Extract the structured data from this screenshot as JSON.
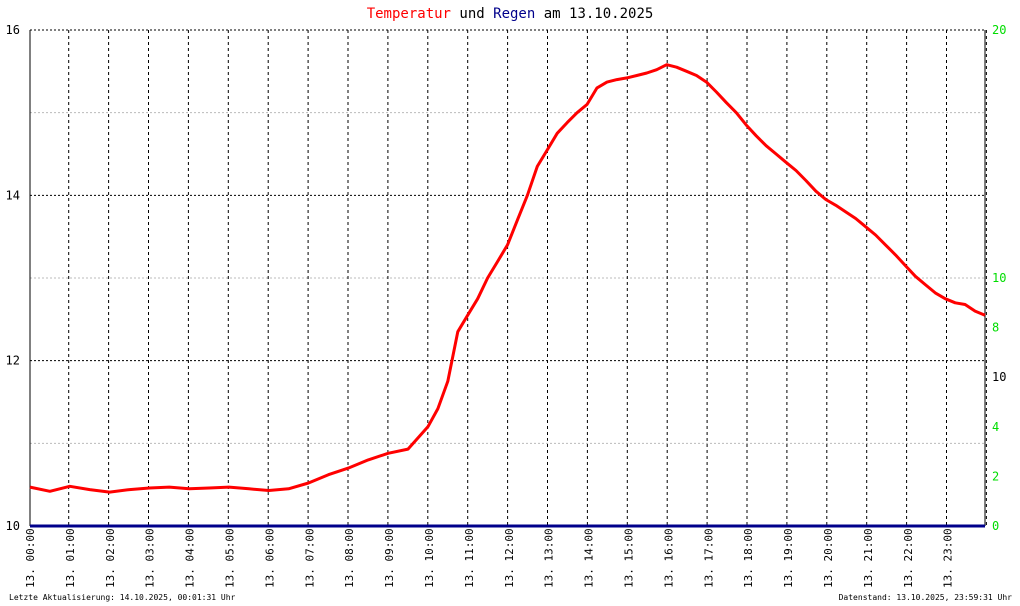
{
  "chart_data": {
    "type": "line",
    "title_parts": [
      {
        "text": "Temperatur",
        "color": "#ff0000"
      },
      {
        "text": " und ",
        "color": "#000000"
      },
      {
        "text": "Regen",
        "color": "#00008b"
      },
      {
        "text": " am 13.10.2025",
        "color": "#000000"
      }
    ],
    "xlabel": "",
    "ylabel": "",
    "x_tick_labels": [
      "13. 00:00",
      "13. 01:00",
      "13. 02:00",
      "13. 03:00",
      "13. 04:00",
      "13. 05:00",
      "13. 06:00",
      "13. 07:00",
      "13. 08:00",
      "13. 09:00",
      "13. 10:00",
      "13. 11:00",
      "13. 12:00",
      "13. 13:00",
      "13. 14:00",
      "13. 15:00",
      "13. 16:00",
      "13. 17:00",
      "13. 18:00",
      "13. 19:00",
      "13. 20:00",
      "13. 21:00",
      "13. 22:00",
      "13. 23:00"
    ],
    "xlim_hours": [
      0,
      24
    ],
    "y_left": {
      "ticks": [
        10,
        12,
        14,
        16
      ],
      "ylim": [
        10,
        16
      ],
      "color": "#000000"
    },
    "y_right": {
      "ticks": [
        0,
        2,
        4,
        6,
        8,
        10,
        20
      ],
      "ylim": [
        0,
        20
      ],
      "color": "#00dd00",
      "tick_labels": [
        "0",
        "2",
        "4",
        "",
        "8",
        "10",
        "20"
      ]
    },
    "extra_right_label": {
      "text": "10",
      "color": "#000000"
    },
    "grid": true,
    "series": [
      {
        "name": "Temperatur",
        "color": "#ff0000",
        "axis": "left",
        "x": [
          0,
          0.5,
          1,
          1.5,
          2,
          2.5,
          3,
          3.5,
          4,
          4.5,
          5,
          5.5,
          6,
          6.5,
          7,
          7.5,
          8,
          8.5,
          9,
          9.5,
          10,
          10.25,
          10.5,
          10.75,
          11,
          11.25,
          11.5,
          11.75,
          12,
          12.25,
          12.5,
          12.75,
          13,
          13.25,
          13.5,
          13.75,
          14,
          14.25,
          14.5,
          14.75,
          15,
          15.25,
          15.5,
          15.75,
          16,
          16.25,
          16.5,
          16.75,
          17,
          17.25,
          17.5,
          17.75,
          18,
          18.25,
          18.5,
          18.75,
          19,
          19.25,
          19.5,
          19.75,
          20,
          20.25,
          20.5,
          20.75,
          21,
          21.25,
          21.5,
          21.75,
          22,
          22.25,
          22.5,
          22.75,
          23,
          23.25,
          23.5,
          23.75,
          24
        ],
        "values": [
          10.47,
          10.42,
          10.48,
          10.44,
          10.41,
          10.44,
          10.46,
          10.47,
          10.45,
          10.46,
          10.47,
          10.45,
          10.43,
          10.45,
          10.52,
          10.62,
          10.7,
          10.8,
          10.88,
          10.93,
          11.2,
          11.42,
          11.75,
          12.35,
          12.55,
          12.75,
          13.0,
          13.2,
          13.4,
          13.7,
          14.0,
          14.35,
          14.55,
          14.75,
          14.88,
          15.0,
          15.1,
          15.3,
          15.37,
          15.4,
          15.42,
          15.45,
          15.48,
          15.52,
          15.58,
          15.55,
          15.5,
          15.45,
          15.37,
          15.25,
          15.12,
          15.0,
          14.85,
          14.72,
          14.6,
          14.5,
          14.4,
          14.3,
          14.18,
          14.05,
          13.95,
          13.88,
          13.8,
          13.72,
          13.62,
          13.52,
          13.4,
          13.28,
          13.15,
          13.02,
          12.92,
          12.82,
          12.75,
          12.7,
          12.68,
          12.6,
          12.55
        ]
      },
      {
        "name": "Regen",
        "color": "#00008b",
        "axis": "right",
        "x": [
          0,
          24
        ],
        "values": [
          0,
          0
        ]
      }
    ]
  },
  "footer": {
    "left": "Letzte Aktualisierung: 14.10.2025, 00:01:31 Uhr",
    "right": "Datenstand: 13.10.2025, 23:59:31 Uhr"
  }
}
